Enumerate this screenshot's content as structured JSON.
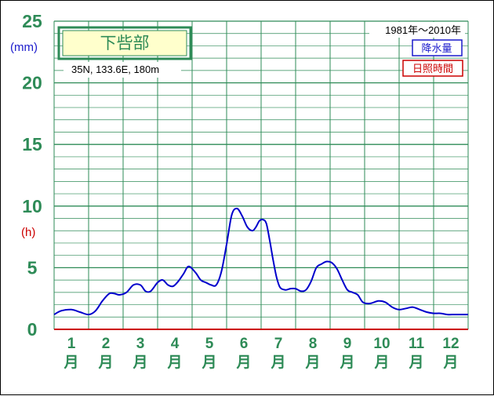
{
  "chart_data": {
    "type": "line",
    "title": "下呰部",
    "location": "35N,  133.6E,  180m",
    "period": "1981年〜2010年",
    "unit_precip": "(mm)",
    "unit_sun": "(h)",
    "legend": [
      "降水量",
      "日照時間"
    ],
    "y_ticks": [
      "0",
      "5",
      "10",
      "15",
      "20",
      "25"
    ],
    "ylim": [
      0,
      25
    ],
    "categories": [
      "1",
      "2",
      "3",
      "4",
      "5",
      "6",
      "7",
      "8",
      "9",
      "10",
      "11",
      "12"
    ],
    "month_suffix": "月",
    "series": [
      {
        "name": "降水量",
        "color": "#0000cc",
        "x": [
          0.0,
          0.2,
          0.5,
          0.75,
          1.0,
          1.2,
          1.4,
          1.6,
          1.75,
          1.9,
          2.1,
          2.3,
          2.5,
          2.65,
          2.8,
          3.0,
          3.15,
          3.3,
          3.45,
          3.6,
          3.75,
          3.9,
          4.1,
          4.25,
          4.4,
          4.55,
          4.7,
          4.85,
          5.0,
          5.15,
          5.3,
          5.45,
          5.6,
          5.75,
          5.85,
          5.95,
          6.05,
          6.15,
          6.25,
          6.35,
          6.45,
          6.55,
          6.7,
          6.85,
          7.0,
          7.15,
          7.3,
          7.45,
          7.6,
          7.75,
          7.9,
          8.05,
          8.2,
          8.35,
          8.5,
          8.65,
          8.8,
          8.95,
          9.15,
          9.4,
          9.6,
          9.8,
          10.0,
          10.2,
          10.4,
          10.6,
          10.8,
          11.0,
          11.2,
          11.4,
          11.6,
          11.8,
          12.0
        ],
        "values": [
          1.2,
          1.5,
          1.6,
          1.4,
          1.2,
          1.5,
          2.3,
          2.9,
          2.9,
          2.8,
          3.0,
          3.6,
          3.6,
          3.1,
          3.1,
          3.8,
          4.0,
          3.6,
          3.5,
          3.9,
          4.5,
          5.1,
          4.6,
          4.0,
          3.8,
          3.6,
          3.6,
          4.7,
          6.9,
          9.3,
          9.8,
          9.2,
          8.3,
          8.0,
          8.3,
          8.8,
          8.9,
          8.6,
          7.2,
          5.6,
          4.2,
          3.4,
          3.2,
          3.3,
          3.3,
          3.1,
          3.2,
          3.9,
          5.0,
          5.3,
          5.5,
          5.4,
          4.9,
          4.0,
          3.2,
          3.0,
          2.8,
          2.2,
          2.1,
          2.3,
          2.2,
          1.8,
          1.6,
          1.7,
          1.8,
          1.6,
          1.4,
          1.3,
          1.3,
          1.2,
          1.2,
          1.2,
          1.2
        ]
      }
    ]
  }
}
